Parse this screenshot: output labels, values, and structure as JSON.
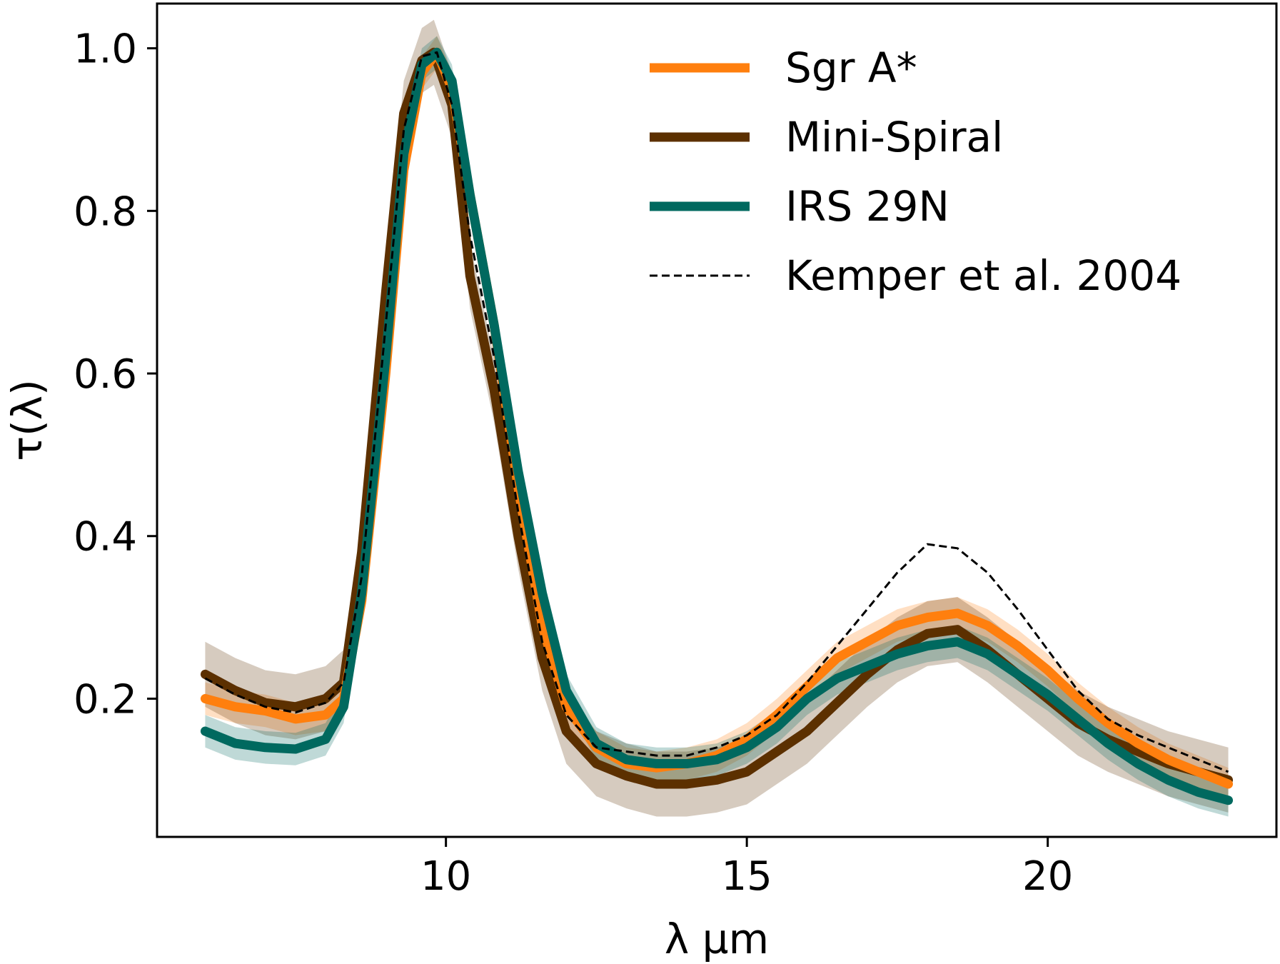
{
  "chart_data": {
    "type": "line",
    "title": "",
    "xlabel": "λ µm",
    "ylabel": "τ(λ)",
    "xlim": [
      5.2,
      23.8
    ],
    "ylim": [
      0.03,
      1.055
    ],
    "xticks": [
      10,
      15,
      20
    ],
    "xtick_labels": [
      "10",
      "15",
      "20"
    ],
    "yticks": [
      0.2,
      0.4,
      0.6,
      0.8,
      1.0
    ],
    "ytick_labels": [
      "0.2",
      "0.4",
      "0.6",
      "0.8",
      "1.0"
    ],
    "grid": false,
    "legend_position": "top-right",
    "series": [
      {
        "name": "Sgr A*",
        "color": "#ff7f0e",
        "style": "solid",
        "band": 0.02,
        "x": [
          6.0,
          6.5,
          7.0,
          7.5,
          8.0,
          8.3,
          8.6,
          9.0,
          9.3,
          9.6,
          9.85,
          10.1,
          10.4,
          10.8,
          11.2,
          11.6,
          12.0,
          12.5,
          13.0,
          13.5,
          14.0,
          14.5,
          15.0,
          15.5,
          16.0,
          16.5,
          17.0,
          17.5,
          18.0,
          18.5,
          19.0,
          19.5,
          20.0,
          20.5,
          21.0,
          21.5,
          22.0,
          22.5,
          23.0
        ],
        "y": [
          0.2,
          0.19,
          0.185,
          0.175,
          0.18,
          0.2,
          0.32,
          0.6,
          0.85,
          0.97,
          0.995,
          0.95,
          0.82,
          0.66,
          0.46,
          0.29,
          0.19,
          0.14,
          0.12,
          0.115,
          0.12,
          0.13,
          0.15,
          0.18,
          0.215,
          0.25,
          0.27,
          0.29,
          0.3,
          0.305,
          0.29,
          0.265,
          0.235,
          0.2,
          0.17,
          0.145,
          0.125,
          0.11,
          0.095
        ]
      },
      {
        "name": "Mini-Spiral",
        "color": "#5c3000",
        "style": "solid",
        "band": 0.04,
        "x": [
          6.0,
          6.5,
          7.0,
          7.5,
          8.0,
          8.3,
          8.6,
          9.0,
          9.3,
          9.6,
          9.8,
          10.1,
          10.4,
          10.8,
          11.2,
          11.6,
          12.0,
          12.5,
          13.0,
          13.5,
          14.0,
          14.5,
          15.0,
          15.5,
          16.0,
          16.5,
          17.0,
          17.5,
          18.0,
          18.5,
          19.0,
          19.5,
          20.0,
          20.5,
          21.0,
          21.5,
          22.0,
          22.5,
          23.0
        ],
        "y": [
          0.23,
          0.21,
          0.195,
          0.19,
          0.2,
          0.22,
          0.38,
          0.7,
          0.92,
          0.985,
          0.995,
          0.93,
          0.72,
          0.58,
          0.4,
          0.25,
          0.16,
          0.12,
          0.105,
          0.095,
          0.095,
          0.1,
          0.11,
          0.135,
          0.16,
          0.195,
          0.23,
          0.26,
          0.28,
          0.285,
          0.26,
          0.23,
          0.2,
          0.17,
          0.15,
          0.135,
          0.12,
          0.11,
          0.1
        ]
      },
      {
        "name": "IRS 29N",
        "color": "#00695f",
        "style": "solid",
        "band": 0.02,
        "x": [
          6.0,
          6.5,
          7.0,
          7.5,
          8.0,
          8.3,
          8.6,
          9.0,
          9.3,
          9.6,
          9.85,
          10.1,
          10.4,
          10.8,
          11.2,
          11.6,
          12.0,
          12.5,
          13.0,
          13.5,
          14.0,
          14.5,
          15.0,
          15.5,
          16.0,
          16.5,
          17.0,
          17.5,
          18.0,
          18.5,
          19.0,
          19.5,
          20.0,
          20.5,
          21.0,
          21.5,
          22.0,
          22.5,
          23.0
        ],
        "y": [
          0.16,
          0.145,
          0.14,
          0.138,
          0.15,
          0.19,
          0.33,
          0.62,
          0.87,
          0.98,
          0.995,
          0.96,
          0.82,
          0.66,
          0.48,
          0.33,
          0.21,
          0.145,
          0.125,
          0.12,
          0.12,
          0.125,
          0.14,
          0.165,
          0.2,
          0.225,
          0.24,
          0.255,
          0.265,
          0.27,
          0.255,
          0.23,
          0.205,
          0.175,
          0.145,
          0.12,
          0.1,
          0.085,
          0.075
        ]
      },
      {
        "name": "Kemper et al. 2004",
        "color": "#000000",
        "style": "dashed",
        "x": [
          6.0,
          6.5,
          7.0,
          7.5,
          8.0,
          8.3,
          8.6,
          9.0,
          9.3,
          9.6,
          9.85,
          10.1,
          10.4,
          10.8,
          11.2,
          11.6,
          12.0,
          12.5,
          13.0,
          13.5,
          14.0,
          14.5,
          15.0,
          15.5,
          16.0,
          16.5,
          17.0,
          17.5,
          18.0,
          18.5,
          19.0,
          19.5,
          20.0,
          20.5,
          21.0,
          21.5,
          22.0,
          22.5,
          23.0
        ],
        "y": [
          0.225,
          0.205,
          0.19,
          0.183,
          0.195,
          0.22,
          0.35,
          0.66,
          0.9,
          0.99,
          0.995,
          0.93,
          0.77,
          0.62,
          0.43,
          0.27,
          0.18,
          0.14,
          0.135,
          0.13,
          0.13,
          0.14,
          0.155,
          0.18,
          0.22,
          0.265,
          0.31,
          0.355,
          0.39,
          0.385,
          0.355,
          0.31,
          0.26,
          0.21,
          0.175,
          0.155,
          0.14,
          0.125,
          0.11
        ]
      }
    ]
  }
}
